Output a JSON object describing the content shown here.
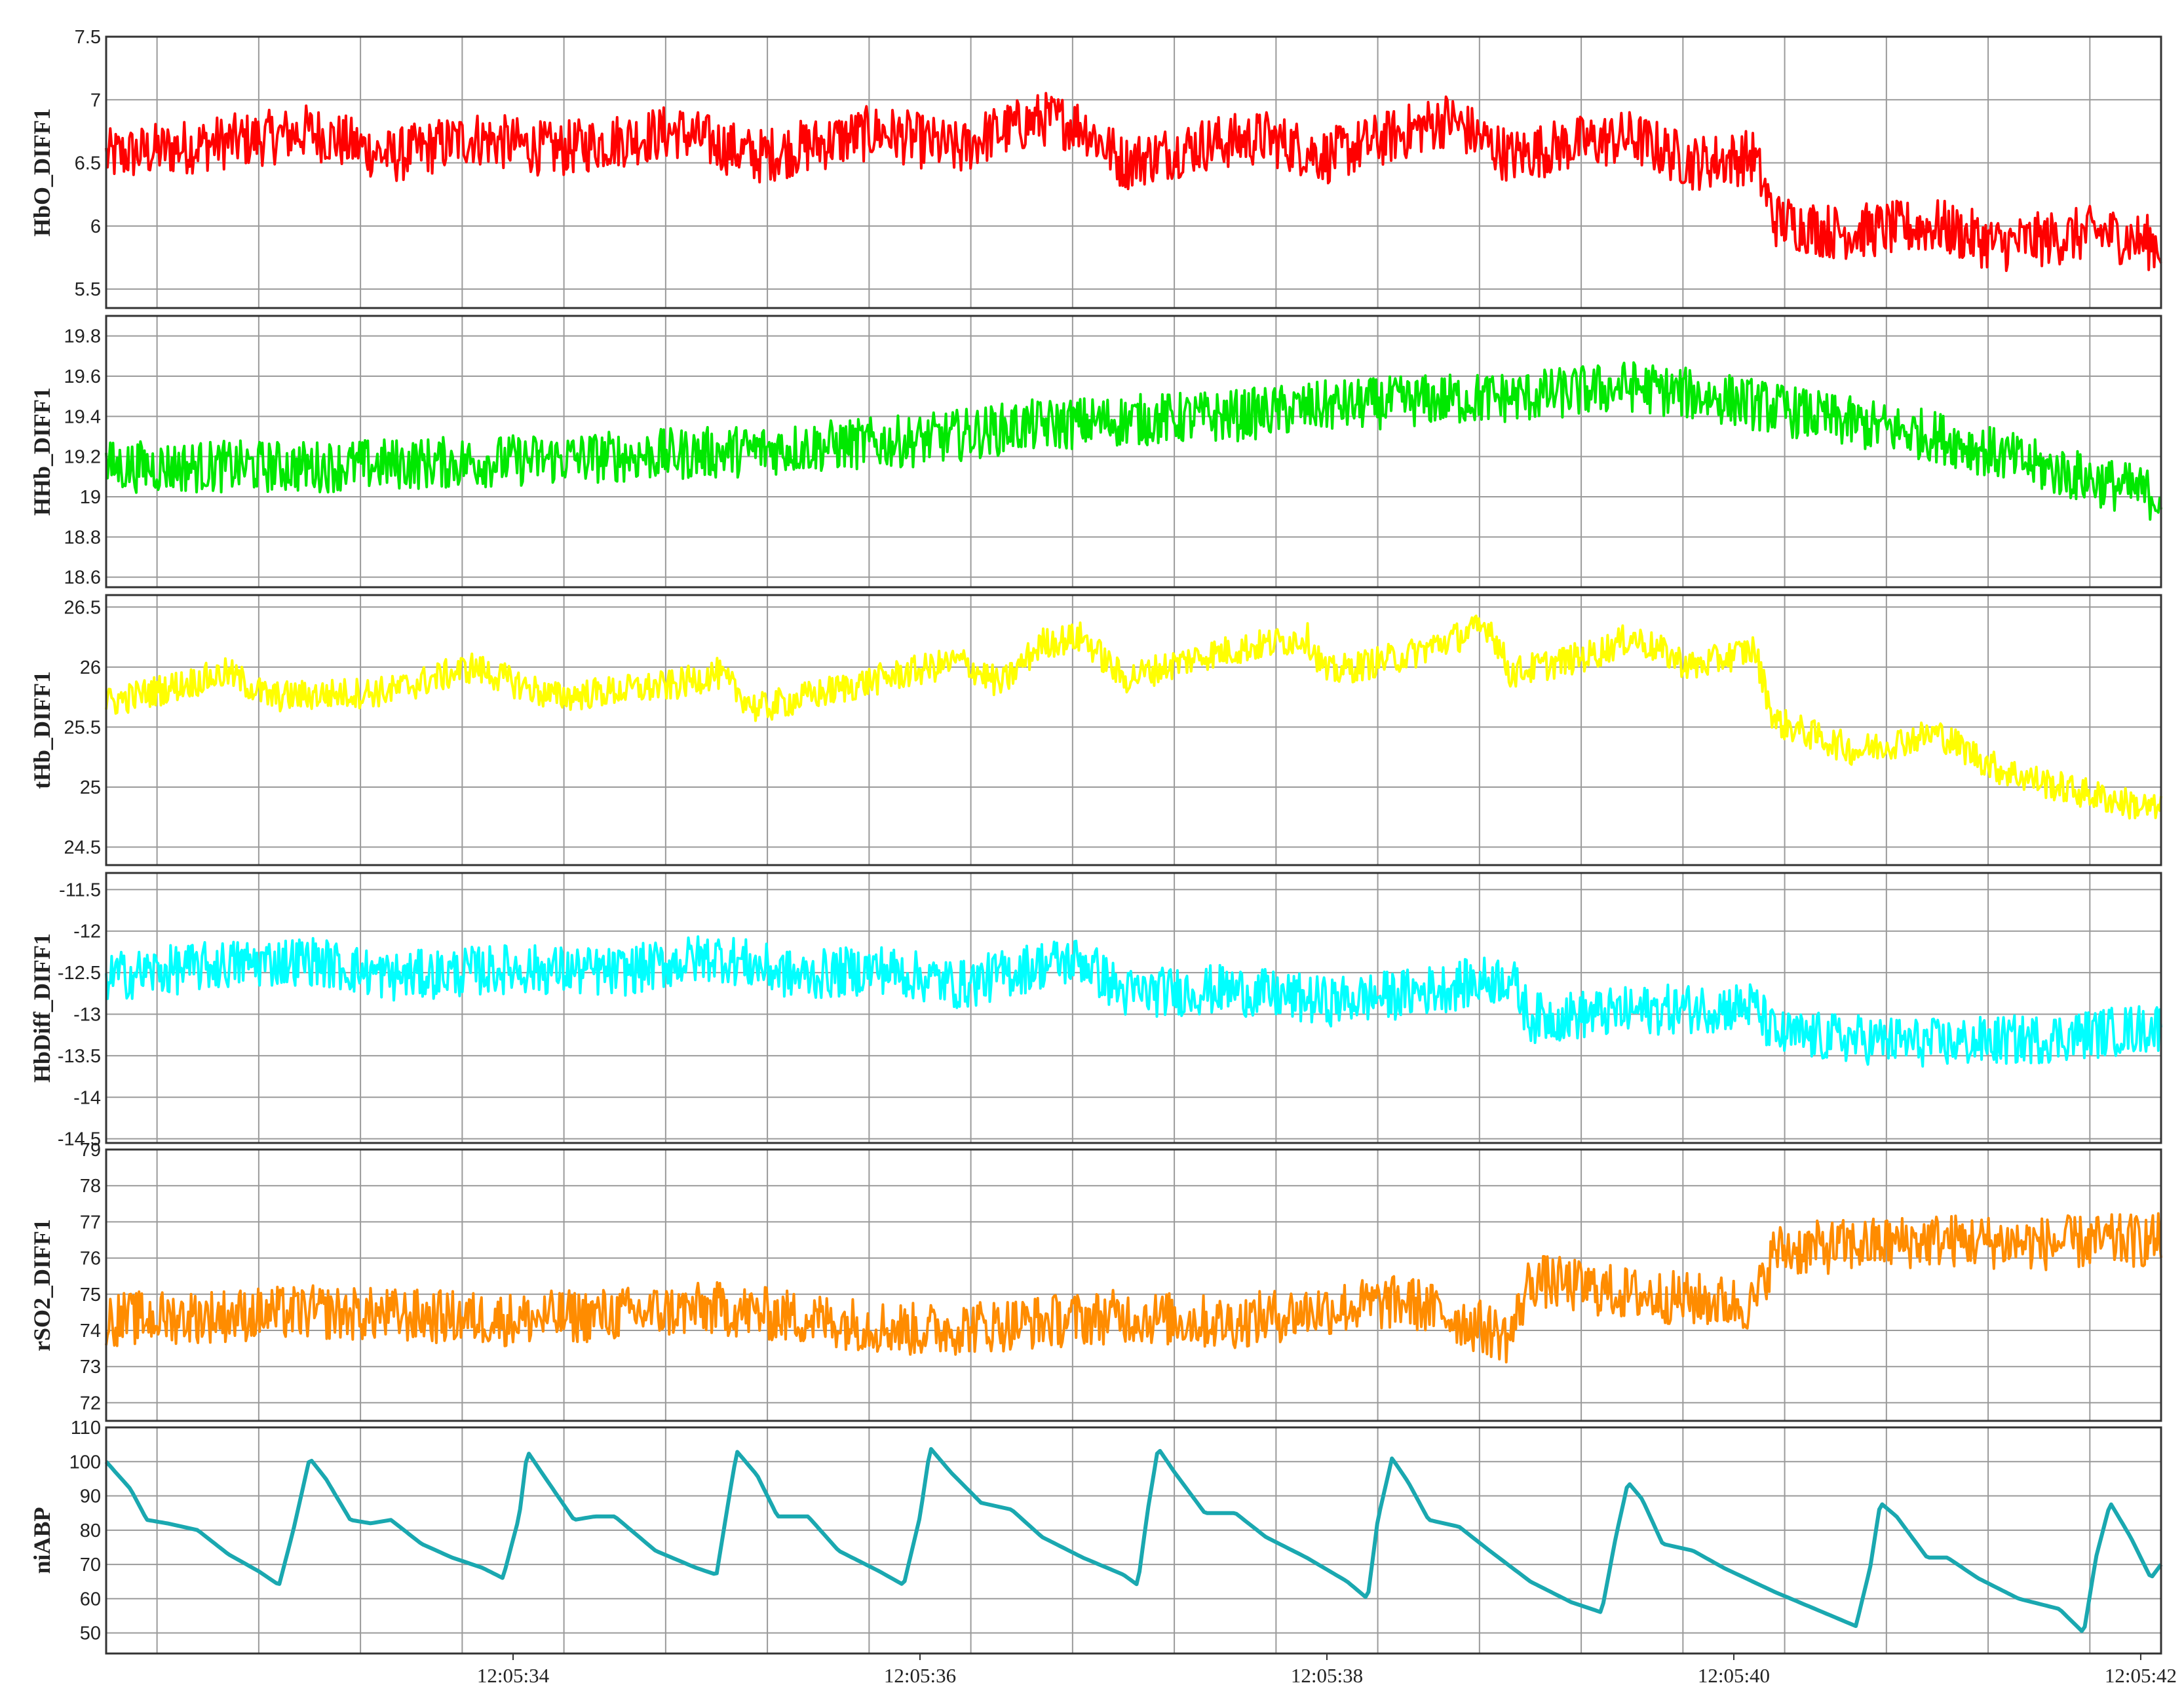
{
  "chart_data": {
    "type": "line",
    "x_axis": {
      "start": "12:05:32.00",
      "end": "12:05:42.10",
      "tick_labels": [
        "12:05:34",
        "12:05:36",
        "12:05:38",
        "12:05:40",
        "12:05:42"
      ],
      "tick_values_s": [
        2,
        4,
        6,
        8,
        10
      ],
      "grid": true,
      "minor_grid_interval_s": 0.5
    },
    "panels": [
      {
        "name": "HbO_DIFF1",
        "ylabel": "HbO_DIFF1",
        "color": "#ff0000",
        "ylim": [
          5.35,
          7.5
        ],
        "yticks": [
          "7.5",
          "7",
          "6.5",
          "6",
          "5.5"
        ],
        "noise": 0.22,
        "trend": [
          [
            0,
            6.55
          ],
          [
            0.5,
            6.65
          ],
          [
            0.8,
            6.7
          ],
          [
            1.0,
            6.75
          ],
          [
            1.4,
            6.55
          ],
          [
            1.8,
            6.7
          ],
          [
            2.2,
            6.6
          ],
          [
            2.8,
            6.75
          ],
          [
            3.2,
            6.55
          ],
          [
            3.8,
            6.75
          ],
          [
            4.2,
            6.6
          ],
          [
            4.3,
            6.7
          ],
          [
            4.6,
            6.85
          ],
          [
            4.8,
            6.8
          ],
          [
            5.0,
            6.5
          ],
          [
            5.4,
            6.65
          ],
          [
            5.7,
            6.7
          ],
          [
            6.0,
            6.55
          ],
          [
            6.2,
            6.65
          ],
          [
            6.6,
            6.85
          ],
          [
            6.9,
            6.55
          ],
          [
            7.2,
            6.65
          ],
          [
            7.5,
            6.7
          ],
          [
            7.8,
            6.5
          ],
          [
            8.1,
            6.55
          ],
          [
            8.2,
            6.05
          ],
          [
            8.5,
            5.95
          ],
          [
            9.0,
            6.0
          ],
          [
            9.3,
            5.85
          ],
          [
            9.8,
            5.95
          ],
          [
            10.1,
            5.85
          ]
        ]
      },
      {
        "name": "HHb_DIFF1",
        "ylabel": "HHb_DIFF1",
        "color": "#00e800",
        "ylim": [
          18.55,
          19.9
        ],
        "yticks": [
          "19.8",
          "19.6",
          "19.4",
          "19.2",
          "19",
          "18.8",
          "18.6"
        ],
        "noise": 0.13,
        "trend": [
          [
            0,
            19.15
          ],
          [
            1.0,
            19.15
          ],
          [
            2.0,
            19.18
          ],
          [
            3.0,
            19.22
          ],
          [
            3.5,
            19.25
          ],
          [
            4.0,
            19.28
          ],
          [
            4.5,
            19.35
          ],
          [
            5.0,
            19.38
          ],
          [
            5.5,
            19.4
          ],
          [
            6.0,
            19.45
          ],
          [
            6.5,
            19.48
          ],
          [
            7.0,
            19.5
          ],
          [
            7.5,
            19.55
          ],
          [
            8.0,
            19.48
          ],
          [
            8.5,
            19.38
          ],
          [
            9.0,
            19.3
          ],
          [
            9.5,
            19.15
          ],
          [
            10.1,
            19.0
          ]
        ]
      },
      {
        "name": "tHb_DIFF1",
        "ylabel": "tHb_DIFF1",
        "color": "#ffff00",
        "ylim": [
          24.35,
          26.6
        ],
        "yticks": [
          "26.5",
          "26",
          "25.5",
          "25",
          "24.5"
        ],
        "noise": 0.13,
        "trend": [
          [
            0,
            25.7
          ],
          [
            0.6,
            25.95
          ],
          [
            0.8,
            25.75
          ],
          [
            1.4,
            25.8
          ],
          [
            1.8,
            26.0
          ],
          [
            2.2,
            25.75
          ],
          [
            2.8,
            25.85
          ],
          [
            3.0,
            25.95
          ],
          [
            3.2,
            25.65
          ],
          [
            3.8,
            25.9
          ],
          [
            4.2,
            26.05
          ],
          [
            4.4,
            25.85
          ],
          [
            4.6,
            26.2
          ],
          [
            4.8,
            26.25
          ],
          [
            5.0,
            25.9
          ],
          [
            5.4,
            26.1
          ],
          [
            5.9,
            26.25
          ],
          [
            6.0,
            25.95
          ],
          [
            6.4,
            26.1
          ],
          [
            6.8,
            26.35
          ],
          [
            6.9,
            25.95
          ],
          [
            7.3,
            26.1
          ],
          [
            7.5,
            26.25
          ],
          [
            7.8,
            26.0
          ],
          [
            8.1,
            26.15
          ],
          [
            8.2,
            25.55
          ],
          [
            8.6,
            25.3
          ],
          [
            9.0,
            25.45
          ],
          [
            9.3,
            25.15
          ],
          [
            9.6,
            25.0
          ],
          [
            10.1,
            24.8
          ]
        ]
      },
      {
        "name": "HbDiff_DIFF1",
        "ylabel": "HbDiff_DIFF1",
        "color": "#00ffff",
        "ylim": [
          -14.55,
          -11.3
        ],
        "yticks": [
          "-11.5",
          "-12",
          "-12.5",
          "-13",
          "-13.5",
          "-14",
          "-14.5"
        ],
        "noise": 0.3,
        "trend": [
          [
            0,
            -12.55
          ],
          [
            0.6,
            -12.4
          ],
          [
            1.0,
            -12.35
          ],
          [
            1.4,
            -12.55
          ],
          [
            2.0,
            -12.45
          ],
          [
            2.5,
            -12.5
          ],
          [
            3.0,
            -12.3
          ],
          [
            3.4,
            -12.55
          ],
          [
            3.8,
            -12.45
          ],
          [
            4.2,
            -12.65
          ],
          [
            4.6,
            -12.4
          ],
          [
            4.8,
            -12.35
          ],
          [
            5.0,
            -12.75
          ],
          [
            5.5,
            -12.7
          ],
          [
            6.0,
            -12.85
          ],
          [
            6.4,
            -12.75
          ],
          [
            6.9,
            -12.55
          ],
          [
            7.0,
            -13.05
          ],
          [
            7.6,
            -12.95
          ],
          [
            8.1,
            -12.9
          ],
          [
            8.2,
            -13.25
          ],
          [
            9.0,
            -13.35
          ],
          [
            9.5,
            -13.3
          ],
          [
            10.1,
            -13.15
          ]
        ]
      },
      {
        "name": "rSO2_DIFF1",
        "ylabel": "rSO2_DIFF1",
        "color": "#ff8c00",
        "ylim": [
          71.5,
          79
        ],
        "yticks": [
          "79",
          "78",
          "77",
          "76",
          "75",
          "74",
          "73",
          "72"
        ],
        "noise": 0.75,
        "trend": [
          [
            0,
            74.3
          ],
          [
            1.0,
            74.5
          ],
          [
            2.0,
            74.3
          ],
          [
            3.0,
            74.6
          ],
          [
            4.0,
            74.0
          ],
          [
            4.5,
            74.2
          ],
          [
            5.0,
            74.4
          ],
          [
            5.5,
            74.2
          ],
          [
            6.0,
            74.6
          ],
          [
            6.4,
            74.8
          ],
          [
            6.9,
            73.8
          ],
          [
            7.0,
            75.4
          ],
          [
            7.5,
            75.0
          ],
          [
            8.1,
            74.7
          ],
          [
            8.2,
            76.2
          ],
          [
            9.0,
            76.5
          ],
          [
            9.5,
            76.4
          ],
          [
            10.1,
            76.5
          ]
        ]
      },
      {
        "name": "niABP",
        "ylabel": "niABP",
        "color": "#1aa8b0",
        "ylim": [
          44,
          110
        ],
        "yticks": [
          "110",
          "100",
          "90",
          "80",
          "70",
          "60",
          "50"
        ],
        "noise": 0,
        "trend": [
          [
            0.0,
            100
          ],
          [
            0.12,
            92
          ],
          [
            0.2,
            83
          ],
          [
            0.3,
            82
          ],
          [
            0.45,
            80
          ],
          [
            0.6,
            73
          ],
          [
            0.75,
            68
          ],
          [
            0.85,
            64
          ],
          [
            0.92,
            80
          ],
          [
            1.0,
            101
          ],
          [
            1.08,
            95
          ],
          [
            1.2,
            83
          ],
          [
            1.3,
            82
          ],
          [
            1.4,
            83
          ],
          [
            1.55,
            76
          ],
          [
            1.7,
            72
          ],
          [
            1.85,
            69
          ],
          [
            1.95,
            66
          ],
          [
            2.03,
            84
          ],
          [
            2.07,
            103
          ],
          [
            2.15,
            96
          ],
          [
            2.3,
            83
          ],
          [
            2.4,
            84
          ],
          [
            2.5,
            84
          ],
          [
            2.7,
            74
          ],
          [
            2.9,
            69
          ],
          [
            3.0,
            67
          ],
          [
            3.06,
            89
          ],
          [
            3.1,
            103
          ],
          [
            3.2,
            96
          ],
          [
            3.3,
            84
          ],
          [
            3.45,
            84
          ],
          [
            3.6,
            74
          ],
          [
            3.8,
            68
          ],
          [
            3.92,
            64
          ],
          [
            4.0,
            84
          ],
          [
            4.05,
            104
          ],
          [
            4.15,
            97
          ],
          [
            4.3,
            88
          ],
          [
            4.45,
            86
          ],
          [
            4.6,
            78
          ],
          [
            4.8,
            72
          ],
          [
            5.0,
            67
          ],
          [
            5.07,
            64
          ],
          [
            5.12,
            86
          ],
          [
            5.17,
            104
          ],
          [
            5.25,
            97
          ],
          [
            5.4,
            85
          ],
          [
            5.55,
            85
          ],
          [
            5.7,
            78
          ],
          [
            5.9,
            72
          ],
          [
            6.1,
            65
          ],
          [
            6.2,
            60
          ],
          [
            6.25,
            83
          ],
          [
            6.32,
            101
          ],
          [
            6.4,
            94
          ],
          [
            6.5,
            83
          ],
          [
            6.65,
            81
          ],
          [
            6.8,
            74
          ],
          [
            7.0,
            65
          ],
          [
            7.2,
            59
          ],
          [
            7.35,
            56
          ],
          [
            7.42,
            78
          ],
          [
            7.48,
            94
          ],
          [
            7.55,
            89
          ],
          [
            7.65,
            76
          ],
          [
            7.8,
            74
          ],
          [
            7.95,
            69
          ],
          [
            8.2,
            62
          ],
          [
            8.4,
            57
          ],
          [
            8.6,
            52
          ],
          [
            8.67,
            69
          ],
          [
            8.72,
            88
          ],
          [
            8.8,
            84
          ],
          [
            8.95,
            72
          ],
          [
            9.05,
            72
          ],
          [
            9.2,
            66
          ],
          [
            9.4,
            60
          ],
          [
            9.6,
            57
          ],
          [
            9.72,
            50
          ],
          [
            9.78,
            72
          ],
          [
            9.85,
            88
          ],
          [
            9.95,
            78
          ],
          [
            10.05,
            66
          ],
          [
            10.1,
            70
          ]
        ]
      }
    ]
  }
}
